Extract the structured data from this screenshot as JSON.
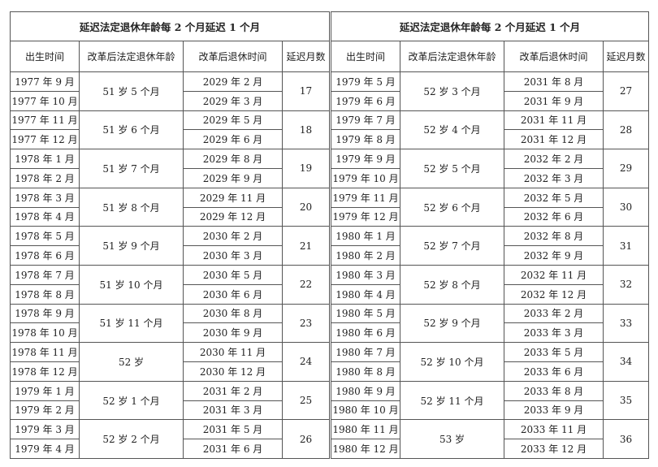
{
  "tables": [
    {
      "title": "延迟法定退休年龄每 2 个月延迟 1 个月",
      "headers": [
        "出生时间",
        "改革后法定退休年龄",
        "改革后退休时间",
        "延迟月数"
      ],
      "groups": [
        {
          "birth": [
            "1977 年 9 月",
            "1977 年 10 月"
          ],
          "age": "51 岁 5 个月",
          "retire": [
            "2029 年 2 月",
            "2029 年 3 月"
          ],
          "delay": 17
        },
        {
          "birth": [
            "1977 年 11 月",
            "1977 年 12 月"
          ],
          "age": "51 岁 6 个月",
          "retire": [
            "2029 年 5 月",
            "2029 年 6 月"
          ],
          "delay": 18
        },
        {
          "birth": [
            "1978 年 1 月",
            "1978 年 2 月"
          ],
          "age": "51 岁 7 个月",
          "retire": [
            "2029 年 8 月",
            "2029 年 9 月"
          ],
          "delay": 19
        },
        {
          "birth": [
            "1978 年 3 月",
            "1978 年 4 月"
          ],
          "age": "51 岁 8 个月",
          "retire": [
            "2029 年 11 月",
            "2029 年 12 月"
          ],
          "delay": 20
        },
        {
          "birth": [
            "1978 年 5 月",
            "1978 年 6 月"
          ],
          "age": "51 岁 9 个月",
          "retire": [
            "2030 年 2 月",
            "2030 年 3 月"
          ],
          "delay": 21
        },
        {
          "birth": [
            "1978 年 7 月",
            "1978 年 8 月"
          ],
          "age": "51 岁 10 个月",
          "retire": [
            "2030 年 5 月",
            "2030 年 6 月"
          ],
          "delay": 22
        },
        {
          "birth": [
            "1978 年 9 月",
            "1978 年 10 月"
          ],
          "age": "51 岁 11 个月",
          "retire": [
            "2030 年 8 月",
            "2030 年 9 月"
          ],
          "delay": 23
        },
        {
          "birth": [
            "1978 年 11 月",
            "1978 年 12 月"
          ],
          "age": "52 岁",
          "retire": [
            "2030 年 11 月",
            "2030 年 12 月"
          ],
          "delay": 24
        },
        {
          "birth": [
            "1979 年 1 月",
            "1979 年 2 月"
          ],
          "age": "52 岁 1 个月",
          "retire": [
            "2031 年 2 月",
            "2031 年 3 月"
          ],
          "delay": 25
        },
        {
          "birth": [
            "1979 年 3 月",
            "1979 年 4 月"
          ],
          "age": "52 岁 2 个月",
          "retire": [
            "2031 年 5 月",
            "2031 年 6 月"
          ],
          "delay": 26
        }
      ]
    },
    {
      "title": "延迟法定退休年龄每 2 个月延迟 1 个月",
      "headers": [
        "出生时间",
        "改革后法定退休年龄",
        "改革后退休时间",
        "延迟月数"
      ],
      "groups": [
        {
          "birth": [
            "1979 年 5 月",
            "1979 年 6 月"
          ],
          "age": "52 岁 3 个月",
          "retire": [
            "2031 年 8 月",
            "2031 年 9 月"
          ],
          "delay": 27
        },
        {
          "birth": [
            "1979 年 7 月",
            "1979 年 8 月"
          ],
          "age": "52 岁 4 个月",
          "retire": [
            "2031 年 11 月",
            "2031 年 12 月"
          ],
          "delay": 28
        },
        {
          "birth": [
            "1979 年 9 月",
            "1979 年 10 月"
          ],
          "age": "52 岁 5 个月",
          "retire": [
            "2032 年 2 月",
            "2032 年 3 月"
          ],
          "delay": 29
        },
        {
          "birth": [
            "1979 年 11 月",
            "1979 年 12 月"
          ],
          "age": "52 岁 6 个月",
          "retire": [
            "2032 年 5 月",
            "2032 年 6 月"
          ],
          "delay": 30
        },
        {
          "birth": [
            "1980 年 1 月",
            "1980 年 2 月"
          ],
          "age": "52 岁 7 个月",
          "retire": [
            "2032 年 8 月",
            "2032 年 9 月"
          ],
          "delay": 31
        },
        {
          "birth": [
            "1980 年 3 月",
            "1980 年 4 月"
          ],
          "age": "52 岁 8 个月",
          "retire": [
            "2032 年 11 月",
            "2032 年 12 月"
          ],
          "delay": 32
        },
        {
          "birth": [
            "1980 年 5 月",
            "1980 年 6 月"
          ],
          "age": "52 岁 9 个月",
          "retire": [
            "2033 年 2 月",
            "2033 年 3 月"
          ],
          "delay": 33
        },
        {
          "birth": [
            "1980 年 7 月",
            "1980 年 8 月"
          ],
          "age": "52 岁 10 个月",
          "retire": [
            "2033 年 5 月",
            "2033 年 6 月"
          ],
          "delay": 34
        },
        {
          "birth": [
            "1980 年 9 月",
            "1980 年 10 月"
          ],
          "age": "52 岁 11 个月",
          "retire": [
            "2033 年 8 月",
            "2033 年 9 月"
          ],
          "delay": 35
        },
        {
          "birth": [
            "1980 年 11 月",
            "1980 年 12 月"
          ],
          "age": "53 岁",
          "retire": [
            "2033 年 11 月",
            "2033 年 12 月"
          ],
          "delay": 36
        }
      ]
    }
  ]
}
